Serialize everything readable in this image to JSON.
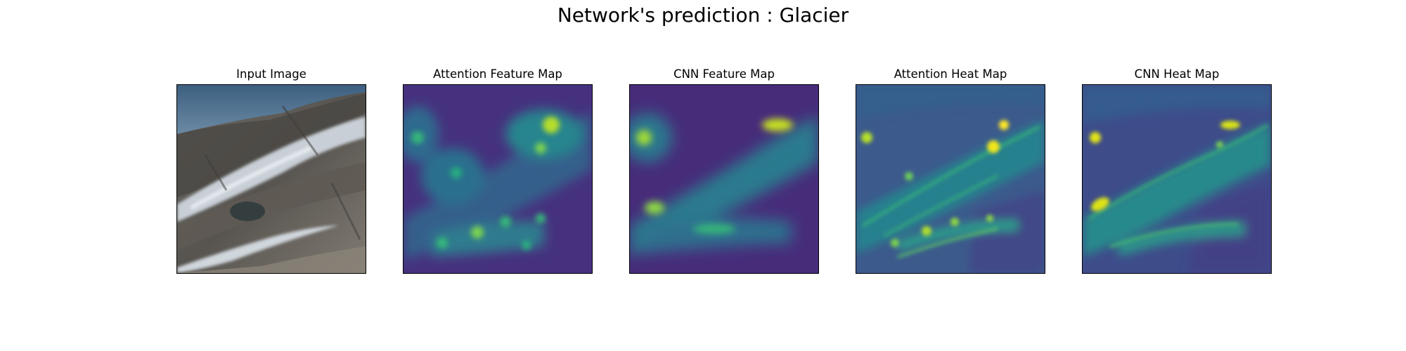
{
  "figure": {
    "title": "Network's prediction : Glacier"
  },
  "panels": [
    {
      "title": "Input Image",
      "kind": "photo"
    },
    {
      "title": "Attention Feature Map",
      "kind": "heatmap"
    },
    {
      "title": "CNN Feature Map",
      "kind": "heatmap"
    },
    {
      "title": "Attention Heat Map",
      "kind": "heatmap"
    },
    {
      "title": "CNN Heat Map",
      "kind": "heatmap"
    }
  ],
  "colormap": {
    "name": "viridis",
    "low": "#440154",
    "mid": "#21908c",
    "high": "#fde725"
  }
}
